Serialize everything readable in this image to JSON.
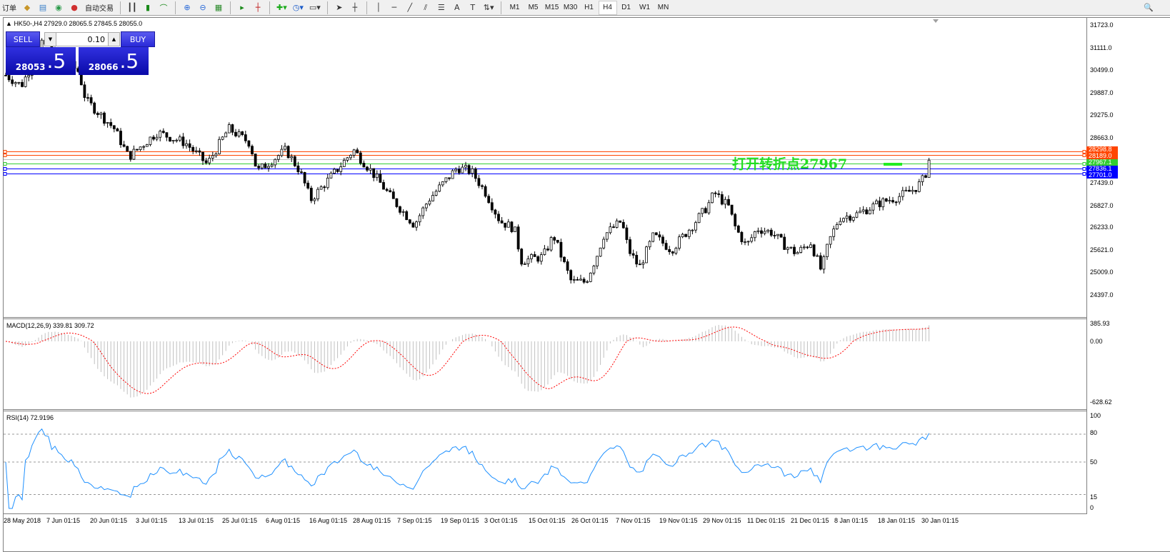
{
  "toolbar": {
    "left_text": "订单",
    "auto_trade": "自动交易",
    "timeframes": [
      "M1",
      "M5",
      "M15",
      "M30",
      "H1",
      "H4",
      "D1",
      "W1",
      "MN"
    ],
    "active_timeframe": "H4"
  },
  "chart": {
    "header": "HK50-,H4  27929.0 28065.5 27845.5 28055.0",
    "direction_icon": "triangle-up"
  },
  "trade_panel": {
    "sell_label": "SELL",
    "buy_label": "BUY",
    "lot": "0.10",
    "sell_big": "28053",
    "sell_small": ".5",
    "buy_big": "28066",
    "buy_small": ".5",
    "color": "#1a1ad0"
  },
  "price_axis": [
    "31723.0",
    "31111.0",
    "30499.0",
    "29887.0",
    "29275.0",
    "28663.0",
    "27439.0",
    "26827.0",
    "26233.0",
    "25621.0",
    "25009.0",
    "24397.0"
  ],
  "levels": [
    {
      "label": "28298.8",
      "value": 28298.8,
      "color": "#ff4500"
    },
    {
      "label": "28189.0",
      "value": 28189.0,
      "color": "#ff4500"
    },
    {
      "label": "",
      "value": 28080,
      "color": "#c0c0c0"
    },
    {
      "label": "27967.1",
      "value": 27967.1,
      "color": "#32cd32"
    },
    {
      "label": "27836.1",
      "value": 27836.1,
      "color": "#0000ff"
    },
    {
      "label": "27701.0",
      "value": 27701.0,
      "color": "#0000ff"
    }
  ],
  "annotation": "打开转折点27967",
  "macd": {
    "label": "MACD(12,26,9) 339.81 309.72",
    "axis": [
      "385.93",
      "0.00",
      "-628.62"
    ],
    "signal_color": "#ff0000",
    "hist_color": "#c0c0c0"
  },
  "rsi": {
    "label": "RSI(14) 72.9196",
    "axis": [
      "100",
      "80",
      "50",
      "15",
      "0"
    ],
    "color": "#1e90ff"
  },
  "dates": [
    "28 May 2018",
    "7 Jun 01:15",
    "20 Jun 01:15",
    "3 Jul 01:15",
    "13 Jul 01:15",
    "25 Jul 01:15",
    "6 Aug 01:15",
    "16 Aug 01:15",
    "28 Aug 01:15",
    "7 Sep 01:15",
    "19 Sep 01:15",
    "3 Oct 01:15",
    "15 Oct 01:15",
    "26 Oct 01:15",
    "7 Nov 01:15",
    "19 Nov 01:15",
    "29 Nov 01:15",
    "11 Dec 01:15",
    "21 Dec 01:15",
    "8 Jan 01:15",
    "18 Jan 01:15",
    "30 Jan 01:15"
  ],
  "price_path": [
    [
      0,
      30460
    ],
    [
      30,
      30080
    ],
    [
      60,
      31240
    ],
    [
      110,
      30460
    ],
    [
      120,
      29690
    ],
    [
      160,
      28910
    ],
    [
      180,
      28140
    ],
    [
      220,
      28810
    ],
    [
      260,
      28520
    ],
    [
      290,
      27940
    ],
    [
      320,
      28910
    ],
    [
      350,
      28520
    ],
    [
      360,
      27750
    ],
    [
      400,
      28330
    ],
    [
      420,
      27750
    ],
    [
      435,
      26980
    ],
    [
      470,
      27750
    ],
    [
      495,
      28330
    ],
    [
      520,
      27750
    ],
    [
      550,
      26980
    ],
    [
      580,
      26300
    ],
    [
      600,
      26980
    ],
    [
      640,
      27850
    ],
    [
      660,
      27750
    ],
    [
      680,
      27170
    ],
    [
      700,
      26400
    ],
    [
      720,
      26200
    ],
    [
      730,
      25330
    ],
    [
      760,
      25430
    ],
    [
      775,
      26010
    ],
    [
      790,
      25230
    ],
    [
      800,
      24750
    ],
    [
      820,
      24750
    ],
    [
      835,
      25430
    ],
    [
      845,
      26010
    ],
    [
      870,
      26400
    ],
    [
      880,
      25620
    ],
    [
      895,
      25140
    ],
    [
      915,
      26010
    ],
    [
      940,
      25620
    ],
    [
      970,
      26300
    ],
    [
      990,
      26790
    ],
    [
      1000,
      27170
    ],
    [
      1020,
      26790
    ],
    [
      1030,
      26200
    ],
    [
      1045,
      25720
    ],
    [
      1060,
      26200
    ],
    [
      1080,
      26100
    ],
    [
      1100,
      25720
    ],
    [
      1115,
      25530
    ],
    [
      1135,
      25820
    ],
    [
      1150,
      25040
    ],
    [
      1160,
      25820
    ],
    [
      1175,
      26490
    ],
    [
      1200,
      26590
    ],
    [
      1230,
      26880
    ],
    [
      1260,
      27080
    ],
    [
      1280,
      27270
    ],
    [
      1290,
      27460
    ],
    [
      1305,
      28055
    ]
  ]
}
